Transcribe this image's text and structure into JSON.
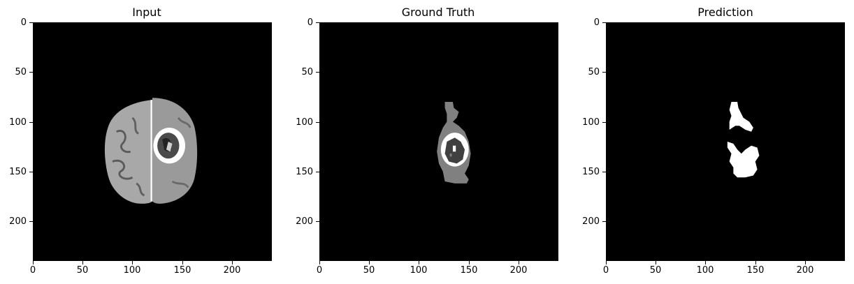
{
  "panels": [
    {
      "title": "Input",
      "yticks": [
        "0",
        "50",
        "100",
        "150",
        "200"
      ],
      "xticks": [
        "0",
        "50",
        "100",
        "150",
        "200"
      ]
    },
    {
      "title": "Ground Truth",
      "yticks": [
        "0",
        "50",
        "100",
        "150",
        "200"
      ],
      "xticks": [
        "0",
        "50",
        "100",
        "150",
        "200"
      ]
    },
    {
      "title": "Prediction",
      "yticks": [
        "0",
        "50",
        "100",
        "150",
        "200"
      ],
      "xticks": [
        "0",
        "50",
        "100",
        "150",
        "200"
      ]
    }
  ],
  "colors": {
    "background": "#000000",
    "brain_tissue": "#b4b4b4",
    "edema": "#808080",
    "enhancing": "#ffffff",
    "necrosis": "#404040",
    "prediction_mask": "#ffffff"
  }
}
